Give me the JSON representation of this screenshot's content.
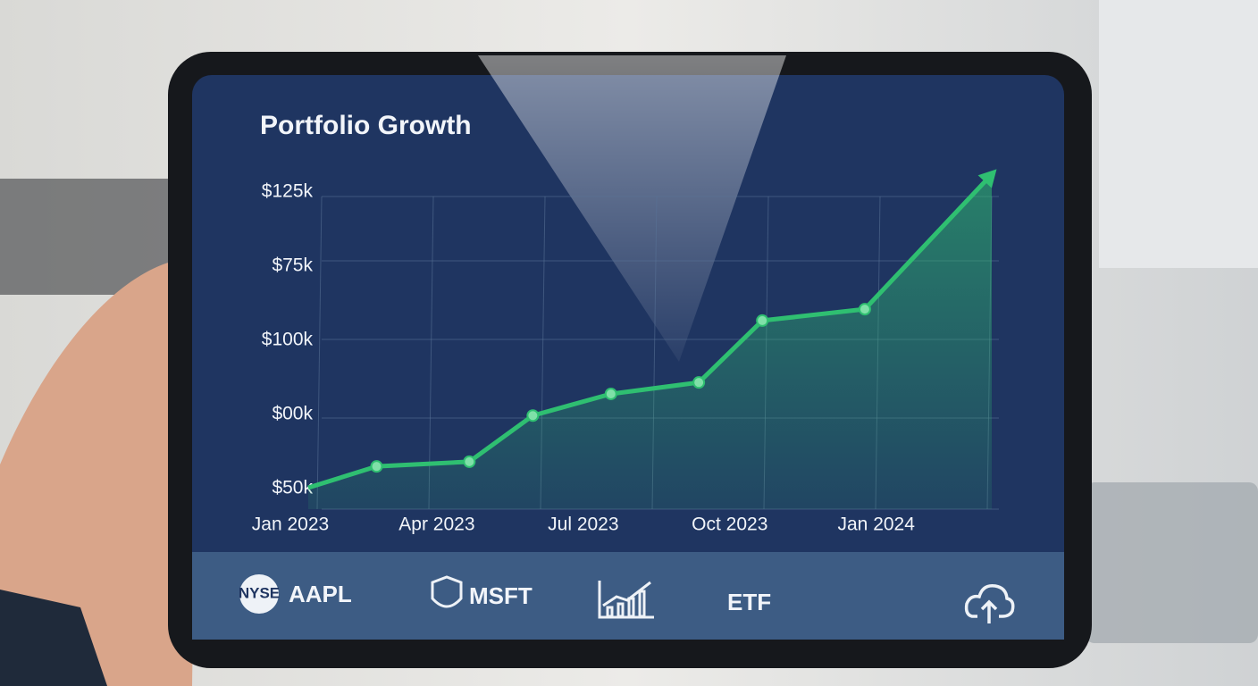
{
  "chart_data": {
    "type": "line",
    "title": "Portfolio Growth",
    "y_labels": [
      "$125k",
      "$75k",
      "$100k",
      "$00k",
      "$50k"
    ],
    "x": [
      0,
      1.4,
      3.3,
      4.6,
      6.2,
      8.0,
      9.3,
      11.4,
      14.0
    ],
    "values": [
      50000,
      55400,
      56600,
      68300,
      73800,
      76700,
      92400,
      95300,
      129500
    ],
    "color": "#2fbf71",
    "xlim": [
      0,
      14
    ],
    "xticks": [
      {
        "value": 0,
        "label": "Jan 2023"
      },
      {
        "value": 3,
        "label": "Apr 2023"
      },
      {
        "value": 6,
        "label": "Jul 2023"
      },
      {
        "value": 9,
        "label": "Oct 2023"
      },
      {
        "value": 12,
        "label": "Jan 2024"
      }
    ],
    "ylim": [
      50000,
      130000
    ],
    "grid": true
  },
  "footer": {
    "badge": "NYSE",
    "items": [
      "AAPL",
      "MSFT",
      "ETF"
    ]
  }
}
